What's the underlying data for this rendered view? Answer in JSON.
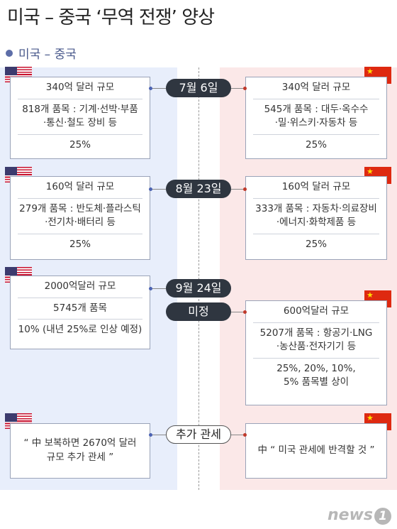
{
  "title": "미국 – 중국 ‘무역 전쟁’ 양상",
  "subtitle": "미국 – 중국",
  "colors": {
    "us_bg": "#e8eefb",
    "cn_bg": "#fbe8e8",
    "pill": "#2f3640"
  },
  "rounds": [
    {
      "date": "7월 6일",
      "us": [
        "340억 달러 규모",
        "818개 품목 : 기계·선박·부품\n·통신·철도 장비 등",
        "25%"
      ],
      "cn": [
        "340억 달러 규모",
        "545개 품목 : 대두·옥수수\n·밀·위스키·자동차 등",
        "25%"
      ]
    },
    {
      "date": "8월 23일",
      "us": [
        "160억 달러 규모",
        "279개 품목 : 반도체·플라스틱\n·전기차·배터리 등",
        "25%"
      ],
      "cn": [
        "160억 달러 규모",
        "333개 품목 : 자동차·의료장비\n·에너지·화학제품 등",
        "25%"
      ]
    },
    {
      "date": "9월 24일",
      "us": [
        "2000억달러 규모",
        "5745개 품목",
        "10% (내년 25%로 인상 예정)"
      ]
    },
    {
      "date": "미정",
      "cn": [
        "600억달러 규모",
        "5207개 품목 : 항공기·LNG\n·농산품·전자기기 등",
        "25%, 20%, 10%,\n5% 품목별 상이"
      ]
    },
    {
      "date": "추가 관세",
      "us": [
        "“ 中 보복하면 2670억 달러\n규모 추가 관세 ”"
      ],
      "cn": [
        "中 “ 미국 관세에 반격할 것 ”"
      ]
    }
  ],
  "logo": {
    "text": "news",
    "mark": "1"
  },
  "icons": {
    "us_flag": "us-flag-icon",
    "cn_flag": "china-flag-icon"
  }
}
